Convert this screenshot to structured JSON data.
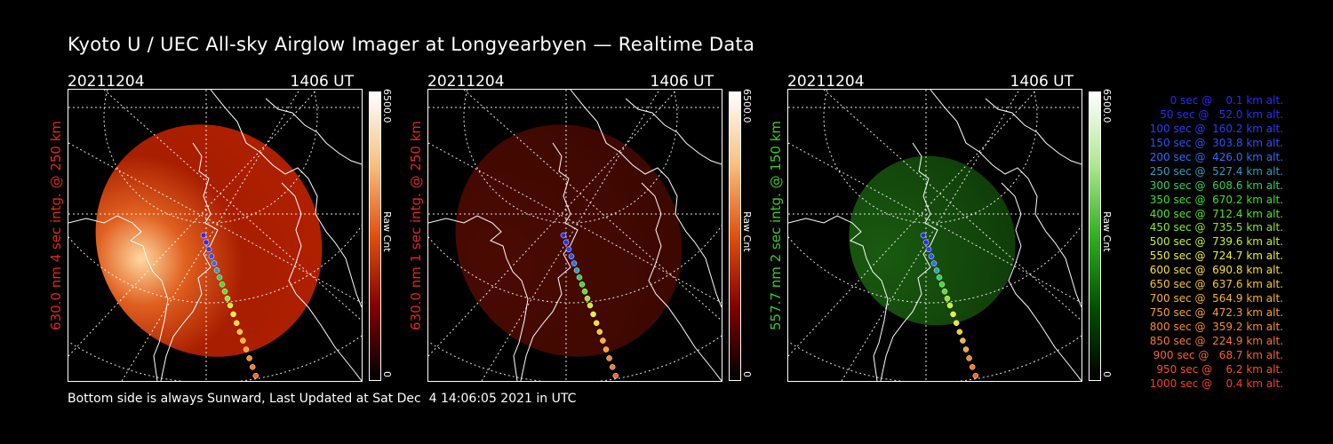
{
  "title": "Kyoto U / UEC All-sky Airglow Imager at Longyearbyen — Realtime Data",
  "footer": "Bottom side is always Sunward, Last Updated at Sat Dec  4 14:06:05 2021 in UTC",
  "panels": [
    {
      "date": "20211204",
      "time": "1406 UT",
      "ylabel": "630.0 nm 4 sec intg. @ 250 km",
      "label_color": "#e0281e",
      "cb_max": "6500.0",
      "cb_name": "Raw Cnt",
      "cb_min": "0",
      "colormap": "red"
    },
    {
      "date": "20211204",
      "time": "1406 UT",
      "ylabel": "630.0 nm 1 sec intg. @ 250 km",
      "label_color": "#e0281e",
      "cb_max": "6500.0",
      "cb_name": "Raw Cnt",
      "cb_min": "0",
      "colormap": "red"
    },
    {
      "date": "20211204",
      "time": "1406 UT",
      "ylabel": "557.7 nm 2 sec intg. @ 150 km",
      "label_color": "#3ccc2c",
      "cb_max": "6500.0",
      "cb_name": "Raw Cnt",
      "cb_min": "0",
      "colormap": "green"
    }
  ],
  "legend": [
    {
      "text": "   0 sec @    0.1 km alt.",
      "color": "#2a2aff"
    },
    {
      "text": "  50 sec @   52.0 km alt.",
      "color": "#2a2aff"
    },
    {
      "text": " 100 sec @  160.2 km alt.",
      "color": "#2a3cff"
    },
    {
      "text": " 150 sec @  303.8 km alt.",
      "color": "#2a50ff"
    },
    {
      "text": " 200 sec @  426.0 km alt.",
      "color": "#2a6cff"
    },
    {
      "text": " 250 sec @  527.4 km alt.",
      "color": "#2aa0c0"
    },
    {
      "text": " 300 sec @  608.6 km alt.",
      "color": "#2ad060"
    },
    {
      "text": " 350 sec @  670.2 km alt.",
      "color": "#3ce02a"
    },
    {
      "text": " 400 sec @  712.4 km alt.",
      "color": "#5ae02a"
    },
    {
      "text": " 450 sec @  735.5 km alt.",
      "color": "#8ce82a"
    },
    {
      "text": " 500 sec @  739.6 km alt.",
      "color": "#c8f02a"
    },
    {
      "text": " 550 sec @  724.7 km alt.",
      "color": "#f0f02a"
    },
    {
      "text": " 600 sec @  690.8 km alt.",
      "color": "#f8e02a"
    },
    {
      "text": " 650 sec @  637.6 km alt.",
      "color": "#f8c82a"
    },
    {
      "text": " 700 sec @  564.9 km alt.",
      "color": "#f8b42a"
    },
    {
      "text": " 750 sec @  472.3 km alt.",
      "color": "#f8a02a"
    },
    {
      "text": " 800 sec @  359.2 km alt.",
      "color": "#f88c2a"
    },
    {
      "text": " 850 sec @  224.9 km alt.",
      "color": "#f8782a"
    },
    {
      "text": " 900 sec @   68.7 km alt.",
      "color": "#f8642a"
    },
    {
      "text": " 950 sec @    6.2 km alt.",
      "color": "#f8502a"
    },
    {
      "text": "1000 sec @    0.4 km alt.",
      "color": "#f83c2a"
    }
  ]
}
